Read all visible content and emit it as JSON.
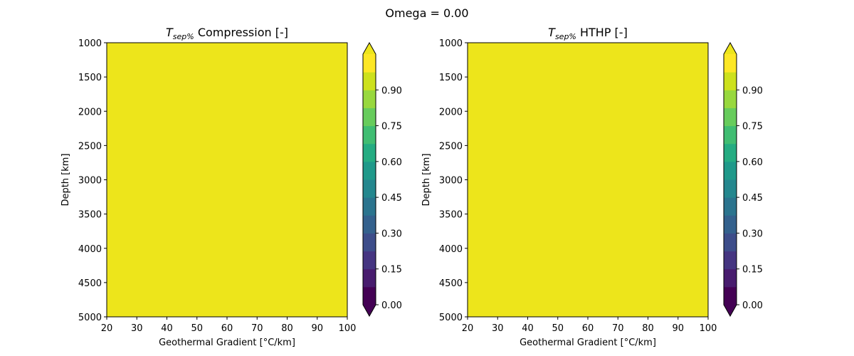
{
  "figure": {
    "suptitle": "Omega = 0.00"
  },
  "chart_data": [
    {
      "type": "heatmap",
      "title": {
        "main": "T",
        "sub": "sep%",
        "rest": " Compression [-]"
      },
      "xlabel": "Geothermal Gradient [°C/km]",
      "ylabel": "Depth [km]",
      "xlim": [
        20,
        100
      ],
      "ylim": [
        5000,
        1000
      ],
      "y_inverted": true,
      "xticks": [
        20,
        30,
        40,
        50,
        60,
        70,
        80,
        90,
        100
      ],
      "yticks": [
        1000,
        1500,
        2000,
        2500,
        3000,
        3500,
        4000,
        4500,
        5000
      ],
      "field_value": 1.0,
      "colorbar": {
        "colormap": "viridis",
        "levels": [
          0.0,
          0.075,
          0.15,
          0.225,
          0.3,
          0.375,
          0.45,
          0.525,
          0.6,
          0.675,
          0.75,
          0.825,
          0.9,
          0.975,
          1.05
        ],
        "ticks": [
          "0.00",
          "0.15",
          "0.30",
          "0.45",
          "0.60",
          "0.75",
          "0.90"
        ],
        "extend": "both",
        "colors": [
          "#440154",
          "#481c6e",
          "#453581",
          "#3d4d8a",
          "#34618d",
          "#2b748e",
          "#24878e",
          "#1f998a",
          "#25ac82",
          "#40bd72",
          "#67cc5c",
          "#98d83e",
          "#cde11d",
          "#fde725"
        ],
        "under_color": "#440154",
        "over_color": "#ede51b",
        "field_color": "#ede51b"
      }
    },
    {
      "type": "heatmap",
      "title": {
        "main": "T",
        "sub": "sep%",
        "rest": " HTHP [-]"
      },
      "xlabel": "Geothermal Gradient [°C/km]",
      "ylabel": "Depth [km]",
      "xlim": [
        20,
        100
      ],
      "ylim": [
        5000,
        1000
      ],
      "y_inverted": true,
      "xticks": [
        20,
        30,
        40,
        50,
        60,
        70,
        80,
        90,
        100
      ],
      "yticks": [
        1000,
        1500,
        2000,
        2500,
        3000,
        3500,
        4000,
        4500,
        5000
      ],
      "field_value": 1.0,
      "colorbar": {
        "colormap": "viridis",
        "levels": [
          0.0,
          0.075,
          0.15,
          0.225,
          0.3,
          0.375,
          0.45,
          0.525,
          0.6,
          0.675,
          0.75,
          0.825,
          0.9,
          0.975,
          1.05
        ],
        "ticks": [
          "0.00",
          "0.15",
          "0.30",
          "0.45",
          "0.60",
          "0.75",
          "0.90"
        ],
        "extend": "both",
        "colors": [
          "#440154",
          "#481c6e",
          "#453581",
          "#3d4d8a",
          "#34618d",
          "#2b748e",
          "#24878e",
          "#1f998a",
          "#25ac82",
          "#40bd72",
          "#67cc5c",
          "#98d83e",
          "#cde11d",
          "#fde725"
        ],
        "under_color": "#440154",
        "over_color": "#ede51b",
        "field_color": "#ede51b"
      }
    }
  ]
}
